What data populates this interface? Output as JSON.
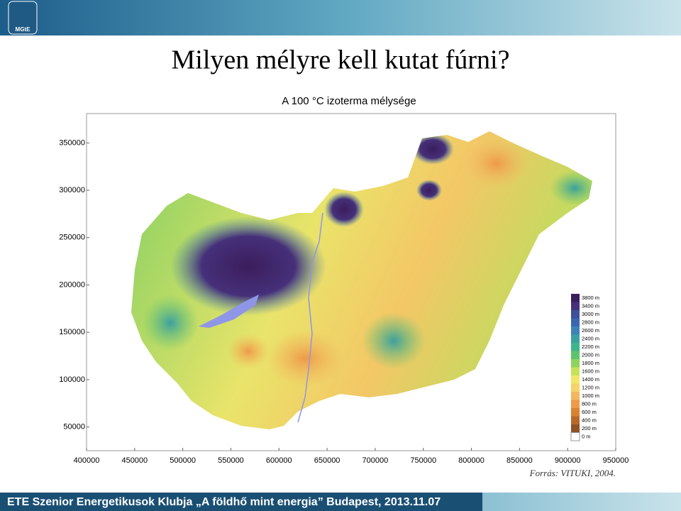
{
  "header": {
    "logo": "MGtE"
  },
  "slide_title": "Milyen mélyre kell kutat fúrni?",
  "map": {
    "title": "A 100 °C izoterma mélysége",
    "xlim": [
      400000,
      950000
    ],
    "ylim": [
      25000,
      381000
    ],
    "xticks": [
      400000,
      450000,
      500000,
      550000,
      600000,
      650000,
      700000,
      750000,
      800000,
      850000,
      900000,
      950000
    ],
    "yticks": [
      50000,
      100000,
      150000,
      200000,
      250000,
      300000,
      350000
    ],
    "legend": [
      {
        "label": "3800 m",
        "color": "#3b1d5c"
      },
      {
        "label": "3400 m",
        "color": "#46307a"
      },
      {
        "label": "3000 m",
        "color": "#3f4f9a"
      },
      {
        "label": "2800 m",
        "color": "#3a66b0"
      },
      {
        "label": "2600 m",
        "color": "#3d83b8"
      },
      {
        "label": "2400 m",
        "color": "#3ca0a0"
      },
      {
        "label": "2200 m",
        "color": "#3fb58a"
      },
      {
        "label": "2000 m",
        "color": "#5cc46e"
      },
      {
        "label": "1800 m",
        "color": "#8ed35c"
      },
      {
        "label": "1600 m",
        "color": "#c6e25a"
      },
      {
        "label": "1400 m",
        "color": "#f1e66a"
      },
      {
        "label": "1200 m",
        "color": "#f6d26a"
      },
      {
        "label": "1000 m",
        "color": "#f4b660"
      },
      {
        "label": "800 m",
        "color": "#ee9a48"
      },
      {
        "label": "600 m",
        "color": "#d9822f"
      },
      {
        "label": "400 m",
        "color": "#b8692a"
      },
      {
        "label": "200 m",
        "color": "#8e5226"
      },
      {
        "label": "0 m",
        "color": "#ffffff"
      }
    ]
  },
  "source": "Forrás: VITUKI, 2004.",
  "footer": "ETE Szenior Energetikusok Klubja „A földhő mint energia” Budapest, 2013.11.07"
}
